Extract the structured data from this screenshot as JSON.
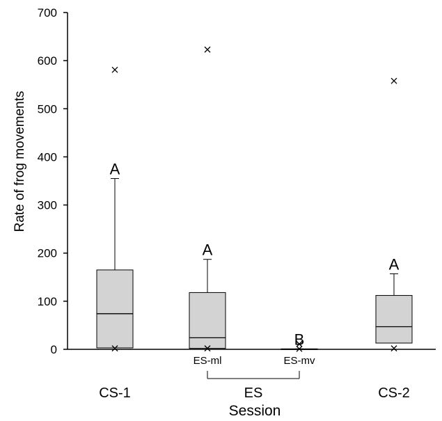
{
  "chart_data": {
    "type": "box",
    "title": "",
    "xlabel": "Session",
    "ylabel": "Rate of frog movements",
    "ylim": [
      0,
      700
    ],
    "yticks": [
      0,
      100,
      200,
      300,
      400,
      500,
      600,
      700
    ],
    "grid": false,
    "legend": "none",
    "categories": [
      "CS-1",
      "ES-ml",
      "ES-mv",
      "CS-2"
    ],
    "group_bracket": {
      "label": "ES",
      "from": "ES-ml",
      "to": "ES-mv"
    },
    "boxes": [
      {
        "label": "CS-1",
        "min": 2,
        "q1": 3,
        "median": 74,
        "q3": 165,
        "max": 355,
        "outliers_high": [
          581
        ],
        "outliers_low": [
          2
        ],
        "letter": "A"
      },
      {
        "label": "ES-ml",
        "min": 2,
        "q1": 2,
        "median": 24,
        "q3": 118,
        "max": 187,
        "outliers_high": [
          623
        ],
        "outliers_low": [
          2
        ],
        "letter": "A"
      },
      {
        "label": "ES-mv",
        "min": 0,
        "q1": 0,
        "median": 0,
        "q3": 1,
        "max": 1,
        "outliers_high": [
          11
        ],
        "outliers_low": [
          1
        ],
        "letter": "B"
      },
      {
        "label": "CS-2",
        "min": 2,
        "q1": 13,
        "median": 47,
        "q3": 112,
        "max": 157,
        "outliers_high": [
          558
        ],
        "outliers_low": [
          2
        ],
        "letter": "A"
      }
    ],
    "colors": {
      "box_fill": "#d3d3d3",
      "stroke": "#000000"
    }
  }
}
